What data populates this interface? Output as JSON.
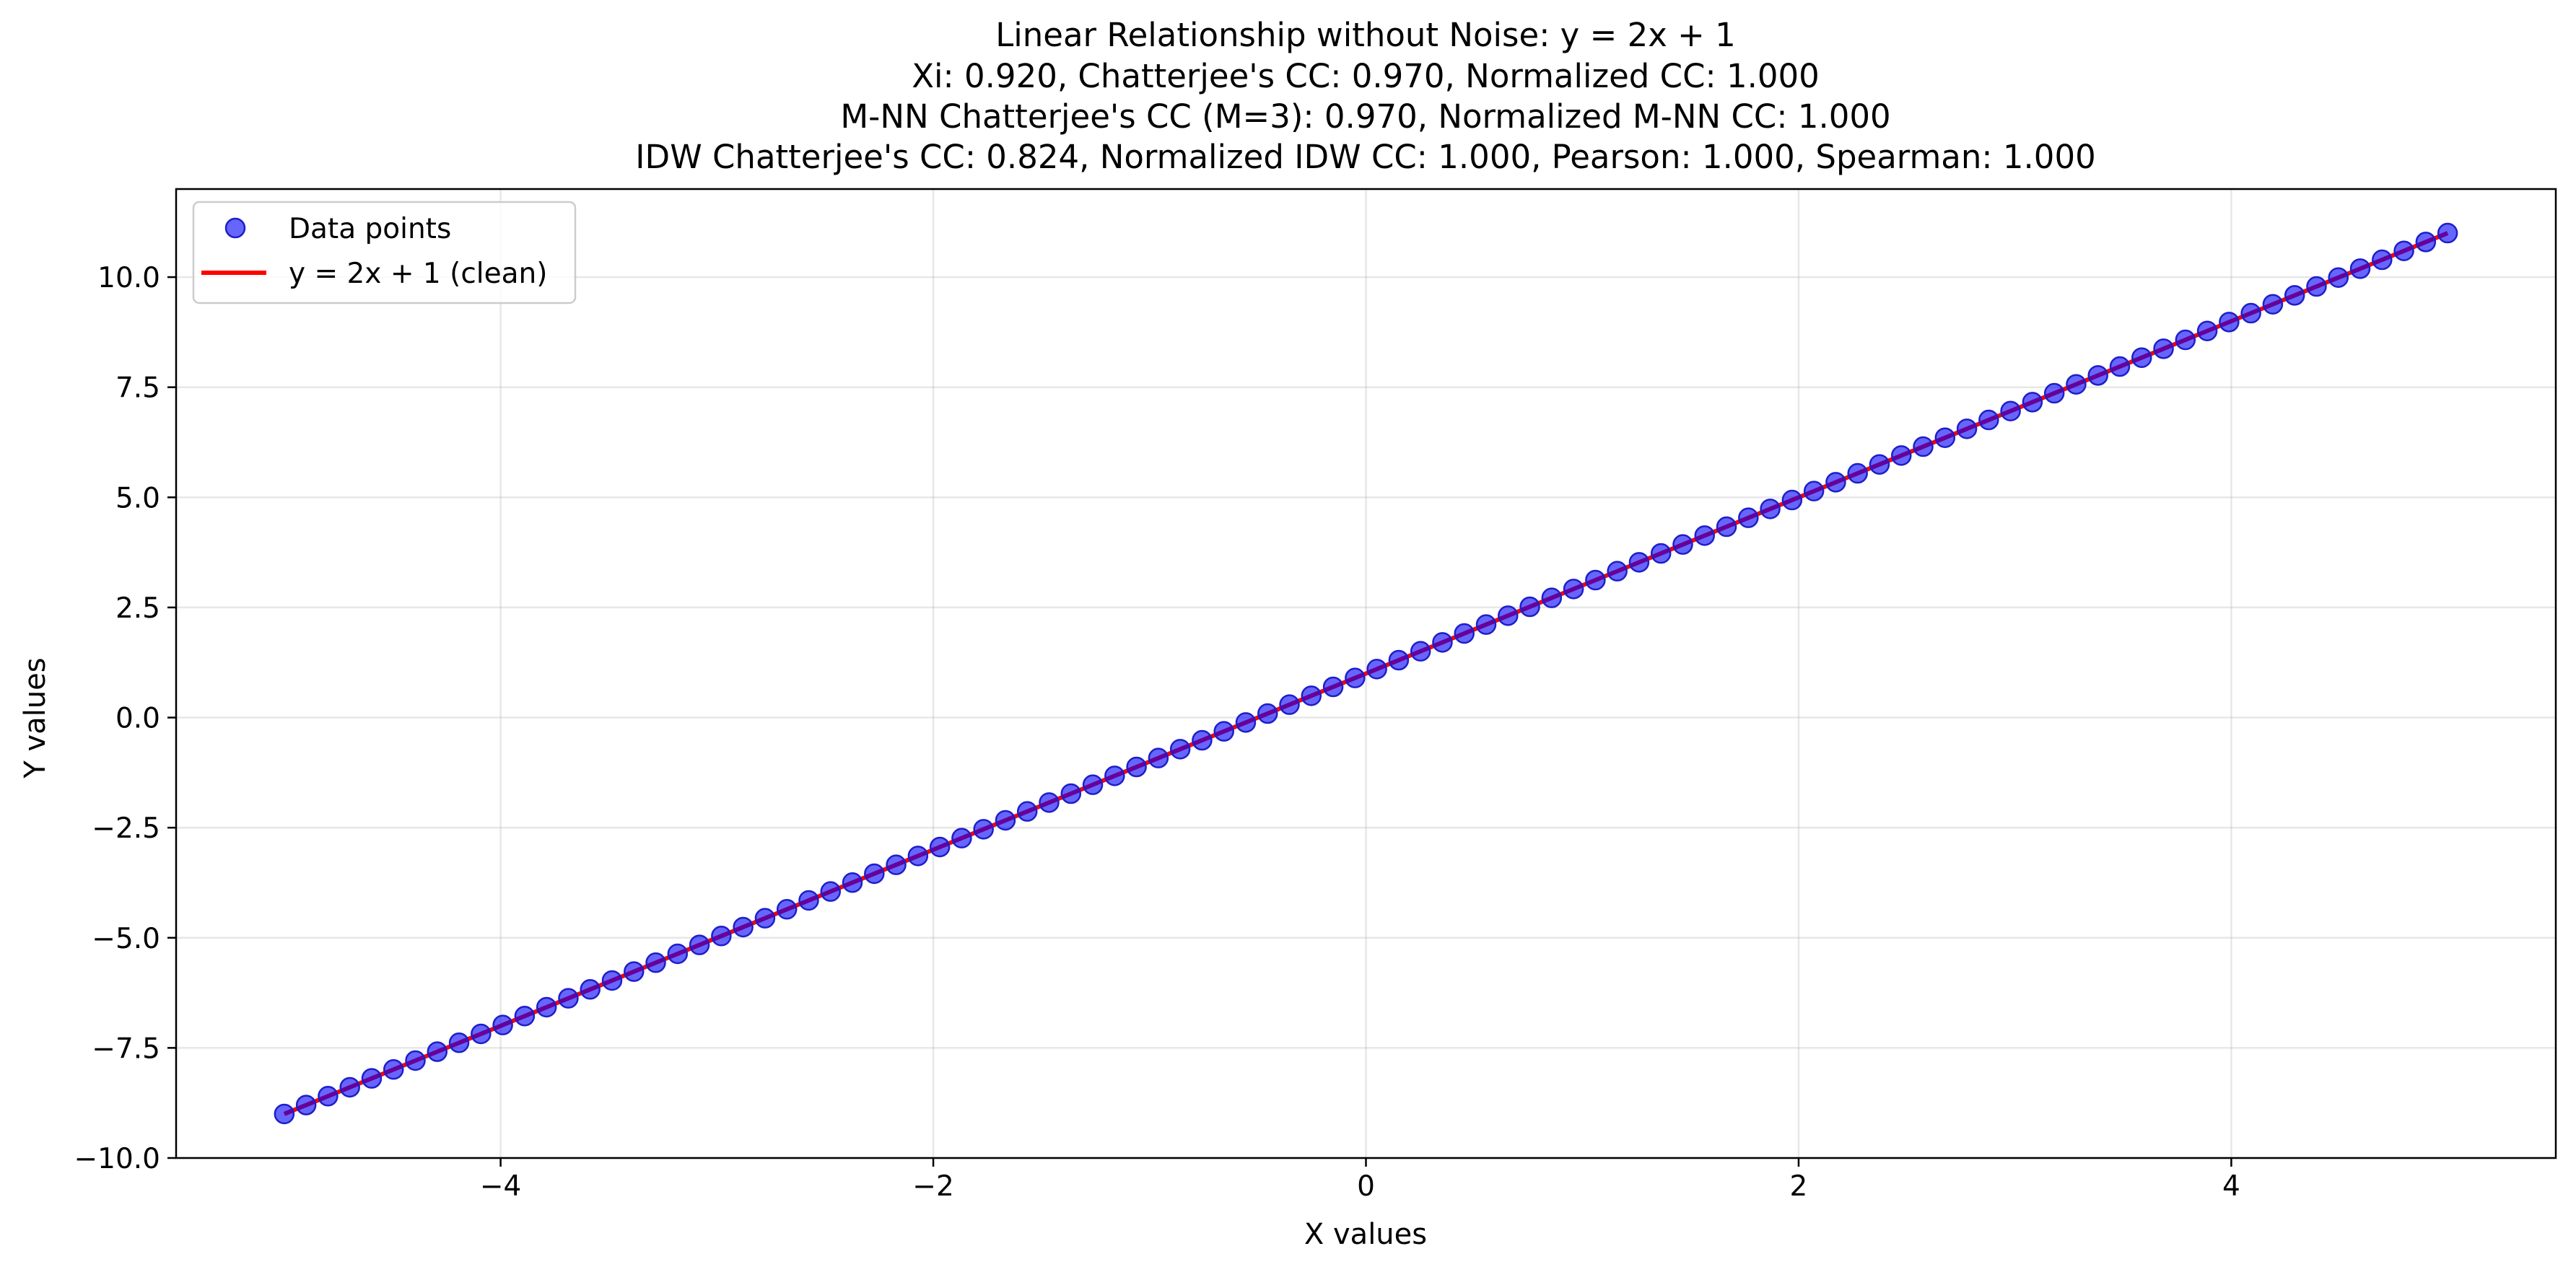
{
  "chart_data": {
    "type": "scatter",
    "title": [
      "Linear Relationship without Noise: y = 2x + 1",
      "Xi: 0.920, Chatterjee's CC: 0.970, Normalized CC: 1.000",
      "M-NN Chatterjee's CC (M=3): 0.970, Normalized M-NN CC: 1.000",
      "IDW Chatterjee's CC: 0.824, Normalized IDW CC: 1.000, Pearson: 1.000, Spearman: 1.000"
    ],
    "xlabel": "X values",
    "ylabel": "Y values",
    "xlim": [
      -5.5,
      5.5
    ],
    "ylim": [
      -10,
      12
    ],
    "xticks": [
      -4,
      -2,
      0,
      2,
      4
    ],
    "xtick_labels": [
      "−4",
      "−2",
      "0",
      "2",
      "4"
    ],
    "yticks": [
      -10,
      -7.5,
      -5,
      -2.5,
      0,
      2.5,
      5,
      7.5,
      10
    ],
    "ytick_labels": [
      "−10.0",
      "−7.5",
      "−5.0",
      "−2.5",
      "0.0",
      "2.5",
      "5.0",
      "7.5",
      "10.0"
    ],
    "grid": true,
    "legend_position": "top-left",
    "series": [
      {
        "name": "Data points",
        "kind": "scatter",
        "color": "#0000ff",
        "edge_color": "#1e1ec8",
        "alpha": 0.6,
        "x_range": [
          -5,
          5
        ],
        "count": 100,
        "formula": "y = 2x + 1"
      },
      {
        "name": "y = 2x + 1 (clean)",
        "kind": "line",
        "color": "#ff0000",
        "x": [
          -5,
          5
        ],
        "y": [
          -9,
          11
        ]
      }
    ]
  }
}
